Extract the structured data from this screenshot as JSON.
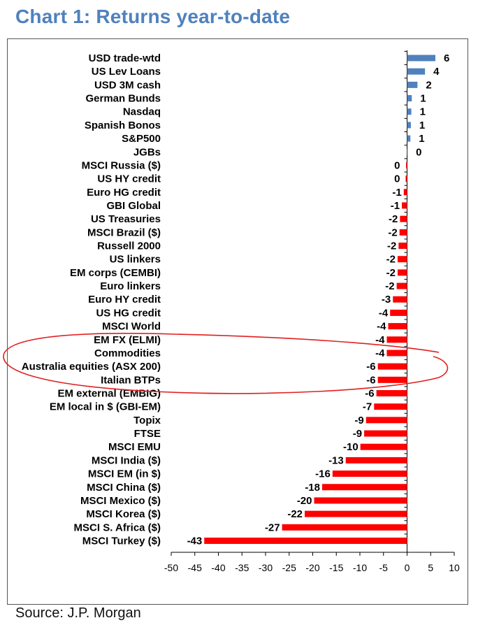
{
  "title": "Chart 1: Returns year-to-date",
  "source": "Source: J.P. Morgan",
  "colors": {
    "title": "#4f81bd",
    "positive": "#4f81bd",
    "negative": "#ff0000",
    "annotation": "#e02020"
  },
  "chart_data": {
    "type": "bar",
    "orientation": "horizontal",
    "xlim": [
      -50,
      10
    ],
    "xticks": [
      "-50",
      "-45",
      "-40",
      "-35",
      "-30",
      "-25",
      "-20",
      "-15",
      "-10",
      "-5",
      "0",
      "5",
      "10"
    ],
    "grid": false,
    "categories": [
      "USD trade-wtd",
      "US Lev Loans",
      "USD 3M cash",
      "German Bunds",
      "Nasdaq",
      "Spanish Bonos",
      "S&P500",
      "JGBs",
      "MSCI Russia ($)",
      "US HY credit",
      "Euro HG credit",
      "GBI Global",
      "US Treasuries",
      "MSCI Brazil ($)",
      "Russell 2000",
      "US linkers",
      "EM corps (CEMBI)",
      "Euro linkers",
      "Euro HY credit",
      "US HG credit",
      "MSCI World",
      "EM FX (ELMI)",
      "Commodities",
      "Australia equities (ASX 200)",
      "Italian BTPs",
      "EM external (EMBIG)",
      "EM local in $ (GBI-EM)",
      "Topix",
      "FTSE",
      "MSCI EMU",
      "MSCI India ($)",
      "MSCI EM (in $)",
      "MSCI China ($)",
      "MSCI Mexico ($)",
      "MSCI Korea ($)",
      "MSCI S. Africa ($)",
      "MSCI Turkey ($)"
    ],
    "values": [
      6,
      3.8,
      2.2,
      1,
      0.9,
      0.8,
      0.7,
      0.1,
      -0.2,
      -0.3,
      -0.7,
      -1.1,
      -1.5,
      -1.6,
      -1.8,
      -2,
      -2,
      -2.2,
      -3,
      -3.6,
      -4,
      -4.3,
      -4.3,
      -6.2,
      -6.2,
      -6.5,
      -7,
      -8.7,
      -9.1,
      -9.9,
      -13,
      -15.8,
      -18,
      -19.7,
      -21.7,
      -26.5,
      -43
    ],
    "labels": [
      "6",
      "4",
      "2",
      "1",
      "1",
      "1",
      "1",
      "0",
      "0",
      "0",
      "-1",
      "-1",
      "-2",
      "-2",
      "-2",
      "-2",
      "-2",
      "-2",
      "-3",
      "-4",
      "-4",
      "-4",
      "-4",
      "-6",
      "-6",
      "-6",
      "-7",
      "-9",
      "-9",
      "-10",
      "-13",
      "-16",
      "-18",
      "-20",
      "-22",
      "-27",
      "-43"
    ],
    "highlighted": [
      "Commodities",
      "Australia equities (ASX 200)",
      "Italian BTPs"
    ]
  }
}
